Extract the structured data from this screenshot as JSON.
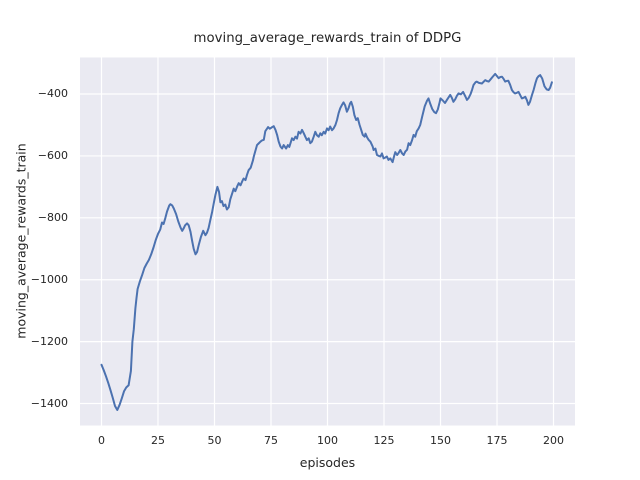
{
  "colors": {
    "figure_background": "#ffffff",
    "axes_background": "#eaeaf2",
    "grid": "#ffffff",
    "line": "#4c72b0",
    "text": "#262626"
  },
  "chart_data": {
    "type": "line",
    "title": "moving_average_rewards_train of DDPG",
    "xlabel": "episodes",
    "ylabel": "moving_average_rewards_train",
    "grid": true,
    "legend": false,
    "style": "seaborn-darkgrid",
    "xlim": [
      -9.5,
      209.5
    ],
    "ylim": [
      -1471,
      -282
    ],
    "x_ticks": [
      0,
      25,
      50,
      75,
      100,
      125,
      150,
      175,
      200
    ],
    "y_ticks": [
      -400,
      -600,
      -800,
      -1000,
      -1200,
      -1400
    ],
    "series": [
      {
        "name": "moving_average_rewards_train",
        "color": "#4c72b0",
        "points": [
          [
            0,
            -1275
          ],
          [
            1,
            -1292
          ],
          [
            2,
            -1312
          ],
          [
            3,
            -1334
          ],
          [
            4,
            -1357
          ],
          [
            5,
            -1382
          ],
          [
            6,
            -1408
          ],
          [
            7,
            -1421
          ],
          [
            8,
            -1404
          ],
          [
            9,
            -1383
          ],
          [
            10,
            -1360
          ],
          [
            11,
            -1348
          ],
          [
            12,
            -1341
          ],
          [
            13,
            -1295
          ],
          [
            13.7,
            -1200
          ],
          [
            14.3,
            -1160
          ],
          [
            15,
            -1092
          ],
          [
            15.5,
            -1059
          ],
          [
            16,
            -1030
          ],
          [
            17,
            -1005
          ],
          [
            18,
            -984
          ],
          [
            19,
            -962
          ],
          [
            20,
            -948
          ],
          [
            21,
            -936
          ],
          [
            22,
            -918
          ],
          [
            23,
            -896
          ],
          [
            24,
            -872
          ],
          [
            25,
            -852
          ],
          [
            26,
            -838
          ],
          [
            26.8,
            -815
          ],
          [
            27.5,
            -820
          ],
          [
            28.3,
            -800
          ],
          [
            29,
            -780
          ],
          [
            30,
            -760
          ],
          [
            30.5,
            -756
          ],
          [
            31.3,
            -760
          ],
          [
            32,
            -770
          ],
          [
            33,
            -788
          ],
          [
            34,
            -812
          ],
          [
            35,
            -832
          ],
          [
            35.7,
            -842
          ],
          [
            36.4,
            -834
          ],
          [
            37,
            -824
          ],
          [
            37.9,
            -818
          ],
          [
            38.6,
            -824
          ],
          [
            39.4,
            -845
          ],
          [
            40.1,
            -874
          ],
          [
            40.8,
            -900
          ],
          [
            41.6,
            -918
          ],
          [
            42.3,
            -910
          ],
          [
            43,
            -888
          ],
          [
            44,
            -862
          ],
          [
            45,
            -842
          ],
          [
            46,
            -856
          ],
          [
            46.7,
            -848
          ],
          [
            47.4,
            -833
          ],
          [
            48.2,
            -806
          ],
          [
            49,
            -780
          ],
          [
            49.7,
            -752
          ],
          [
            50.4,
            -726
          ],
          [
            51.3,
            -700
          ],
          [
            52,
            -716
          ],
          [
            52.6,
            -750
          ],
          [
            53.3,
            -746
          ],
          [
            54,
            -762
          ],
          [
            54.8,
            -757
          ],
          [
            55.5,
            -773
          ],
          [
            56.3,
            -766
          ],
          [
            57,
            -740
          ],
          [
            57.8,
            -722
          ],
          [
            58.5,
            -706
          ],
          [
            59.2,
            -714
          ],
          [
            60,
            -699
          ],
          [
            60.7,
            -688
          ],
          [
            61.5,
            -695
          ],
          [
            62.2,
            -683
          ],
          [
            62.9,
            -673
          ],
          [
            63.7,
            -678
          ],
          [
            64.4,
            -661
          ],
          [
            65.1,
            -646
          ],
          [
            66,
            -638
          ],
          [
            67,
            -615
          ],
          [
            67.4,
            -602
          ],
          [
            68.8,
            -565
          ],
          [
            69.5,
            -560
          ],
          [
            70.3,
            -554
          ],
          [
            71,
            -550
          ],
          [
            71.8,
            -548
          ],
          [
            72.5,
            -520
          ],
          [
            73.7,
            -507
          ],
          [
            74.5,
            -512
          ],
          [
            75.3,
            -508
          ],
          [
            76.2,
            -504
          ],
          [
            77,
            -516
          ],
          [
            77.7,
            -532
          ],
          [
            78.4,
            -554
          ],
          [
            79.2,
            -570
          ],
          [
            79.9,
            -576
          ],
          [
            80.6,
            -565
          ],
          [
            81.7,
            -576
          ],
          [
            82.5,
            -565
          ],
          [
            83.1,
            -571
          ],
          [
            84.3,
            -543
          ],
          [
            85,
            -549
          ],
          [
            85.8,
            -538
          ],
          [
            86.5,
            -544
          ],
          [
            87.2,
            -522
          ],
          [
            88,
            -528
          ],
          [
            88.7,
            -516
          ],
          [
            89.5,
            -527
          ],
          [
            90.2,
            -538
          ],
          [
            90.9,
            -549
          ],
          [
            91.7,
            -543
          ],
          [
            92.4,
            -559
          ],
          [
            93.1,
            -554
          ],
          [
            93.9,
            -538
          ],
          [
            94.6,
            -522
          ],
          [
            95.3,
            -533
          ],
          [
            96.1,
            -538
          ],
          [
            96.8,
            -527
          ],
          [
            97.5,
            -533
          ],
          [
            98.3,
            -522
          ],
          [
            99,
            -528
          ],
          [
            99.8,
            -511
          ],
          [
            100.5,
            -517
          ],
          [
            101.2,
            -505
          ],
          [
            102,
            -517
          ],
          [
            102.7,
            -511
          ],
          [
            103.5,
            -500
          ],
          [
            104.2,
            -484
          ],
          [
            104.9,
            -462
          ],
          [
            105.6,
            -446
          ],
          [
            106.4,
            -435
          ],
          [
            107.1,
            -427
          ],
          [
            107.8,
            -436
          ],
          [
            108.6,
            -457
          ],
          [
            109.3,
            -446
          ],
          [
            110,
            -430
          ],
          [
            110.5,
            -425
          ],
          [
            111.2,
            -441
          ],
          [
            111.9,
            -468
          ],
          [
            112.7,
            -484
          ],
          [
            113.4,
            -478
          ],
          [
            114.2,
            -500
          ],
          [
            114.9,
            -516
          ],
          [
            115.6,
            -532
          ],
          [
            116.4,
            -538
          ],
          [
            116.8,
            -528
          ],
          [
            117.5,
            -540
          ],
          [
            118.2,
            -548
          ],
          [
            119,
            -554
          ],
          [
            120,
            -570
          ],
          [
            120.4,
            -581
          ],
          [
            121.2,
            -576
          ],
          [
            121.9,
            -597
          ],
          [
            122.7,
            -600
          ],
          [
            123.4,
            -602
          ],
          [
            124.1,
            -592
          ],
          [
            124.8,
            -608
          ],
          [
            125.6,
            -605
          ],
          [
            126.3,
            -602
          ],
          [
            127,
            -613
          ],
          [
            127.8,
            -608
          ],
          [
            128.8,
            -620
          ],
          [
            129.5,
            -600
          ],
          [
            130,
            -588
          ],
          [
            130.8,
            -597
          ],
          [
            131.5,
            -590
          ],
          [
            132.2,
            -581
          ],
          [
            133,
            -592
          ],
          [
            133.7,
            -597
          ],
          [
            134.4,
            -586
          ],
          [
            135.2,
            -580
          ],
          [
            135.9,
            -559
          ],
          [
            136.6,
            -565
          ],
          [
            137.4,
            -550
          ],
          [
            138.1,
            -532
          ],
          [
            138.8,
            -538
          ],
          [
            139.5,
            -520
          ],
          [
            140.3,
            -511
          ],
          [
            141,
            -500
          ],
          [
            142,
            -470
          ],
          [
            143,
            -440
          ],
          [
            144,
            -422
          ],
          [
            144.7,
            -414
          ],
          [
            145.5,
            -432
          ],
          [
            146.3,
            -448
          ],
          [
            147.2,
            -458
          ],
          [
            148,
            -462
          ],
          [
            148.8,
            -450
          ],
          [
            149.5,
            -430
          ],
          [
            150,
            -414
          ],
          [
            151,
            -421
          ],
          [
            152,
            -429
          ],
          [
            153,
            -417
          ],
          [
            154.3,
            -403
          ],
          [
            155,
            -412
          ],
          [
            155.7,
            -425
          ],
          [
            156.5,
            -417
          ],
          [
            157.3,
            -405
          ],
          [
            158,
            -398
          ],
          [
            159,
            -401
          ],
          [
            160,
            -393
          ],
          [
            161,
            -408
          ],
          [
            161.7,
            -419
          ],
          [
            162.5,
            -412
          ],
          [
            163.3,
            -400
          ],
          [
            164,
            -385
          ],
          [
            164.6,
            -371
          ],
          [
            165.5,
            -362
          ],
          [
            166,
            -360
          ],
          [
            167,
            -364
          ],
          [
            168.3,
            -366
          ],
          [
            169.8,
            -355
          ],
          [
            170.5,
            -358
          ],
          [
            171.3,
            -360
          ],
          [
            172.2,
            -352
          ],
          [
            173,
            -345
          ],
          [
            174.2,
            -335
          ],
          [
            175,
            -342
          ],
          [
            175.7,
            -349
          ],
          [
            176.5,
            -345
          ],
          [
            177.2,
            -344
          ],
          [
            178,
            -352
          ],
          [
            178.6,
            -360
          ],
          [
            179.3,
            -358
          ],
          [
            180,
            -357
          ],
          [
            180.8,
            -370
          ],
          [
            181.6,
            -387
          ],
          [
            182.3,
            -394
          ],
          [
            183,
            -398
          ],
          [
            183.8,
            -396
          ],
          [
            184.5,
            -393
          ],
          [
            185.3,
            -404
          ],
          [
            186,
            -414
          ],
          [
            186.8,
            -412
          ],
          [
            187.5,
            -409
          ],
          [
            188.2,
            -420
          ],
          [
            188.9,
            -435
          ],
          [
            189.6,
            -425
          ],
          [
            190.4,
            -405
          ],
          [
            191.2,
            -387
          ],
          [
            192,
            -365
          ],
          [
            192.7,
            -349
          ],
          [
            193.4,
            -342
          ],
          [
            194.1,
            -339
          ],
          [
            195,
            -350
          ],
          [
            196,
            -375
          ],
          [
            197,
            -385
          ],
          [
            197.8,
            -387
          ],
          [
            198.5,
            -380
          ],
          [
            199.3,
            -362
          ]
        ]
      }
    ]
  }
}
